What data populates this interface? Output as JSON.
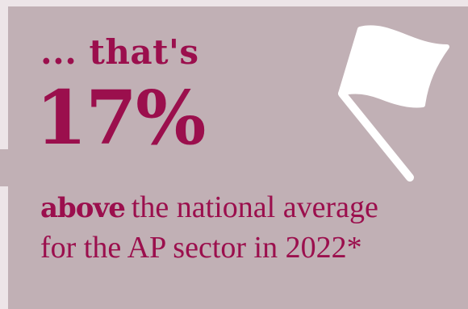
{
  "headline": {
    "lead": "... that's",
    "figure": "17%",
    "emphasis": "above",
    "line1_rest": "the national average",
    "line2": "for the AP sector in 2022*"
  },
  "icons": {
    "flag": "flag-icon"
  },
  "colors": {
    "accent": "#9b0f4d",
    "card_background": "#c1b0b5",
    "page_background": "#ede5e8",
    "icon": "#ffffff"
  }
}
